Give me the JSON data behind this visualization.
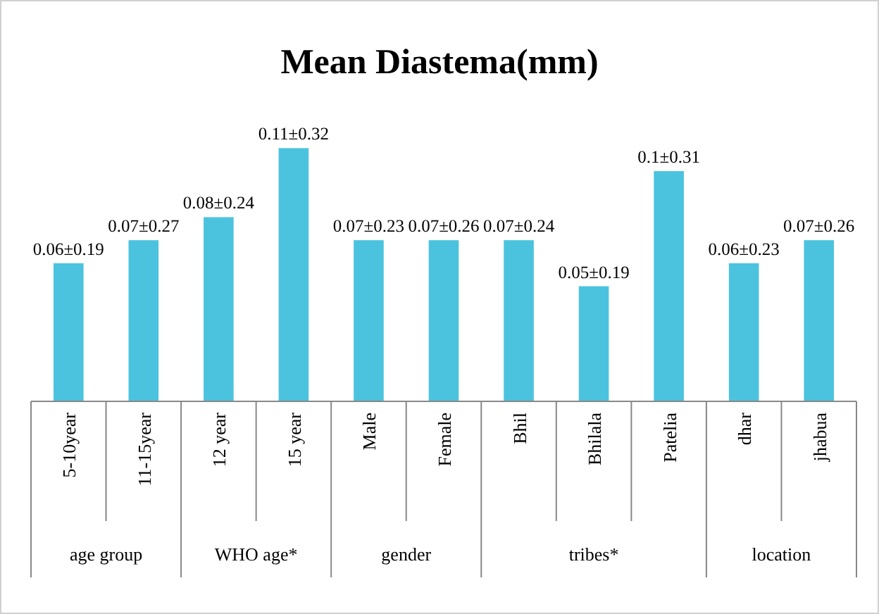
{
  "chart_data": {
    "type": "bar",
    "title": "Mean Diastema(mm)",
    "categories": [
      "5-10year",
      "11-15year",
      "12 year",
      "15 year",
      "Male",
      "Female",
      "Bhil",
      "Bhilala",
      "Patelia",
      "dhar",
      "jhabua"
    ],
    "values": [
      0.06,
      0.07,
      0.08,
      0.11,
      0.07,
      0.07,
      0.07,
      0.05,
      0.1,
      0.06,
      0.07
    ],
    "value_labels": [
      "0.06±0.19",
      "0.07±0.27",
      "0.08±0.24",
      "0.11±0.32",
      "0.07±0.23",
      "0.07±0.26",
      "0.07±0.24",
      "0.05±0.19",
      "0.1±0.31",
      "0.06±0.23",
      "0.07±0.26"
    ],
    "color": "#4cc3de",
    "tick_labels": "x",
    "annotations": [
      "age group",
      "WHO age*",
      "gender",
      "tribes*",
      "location"
    ]
  }
}
